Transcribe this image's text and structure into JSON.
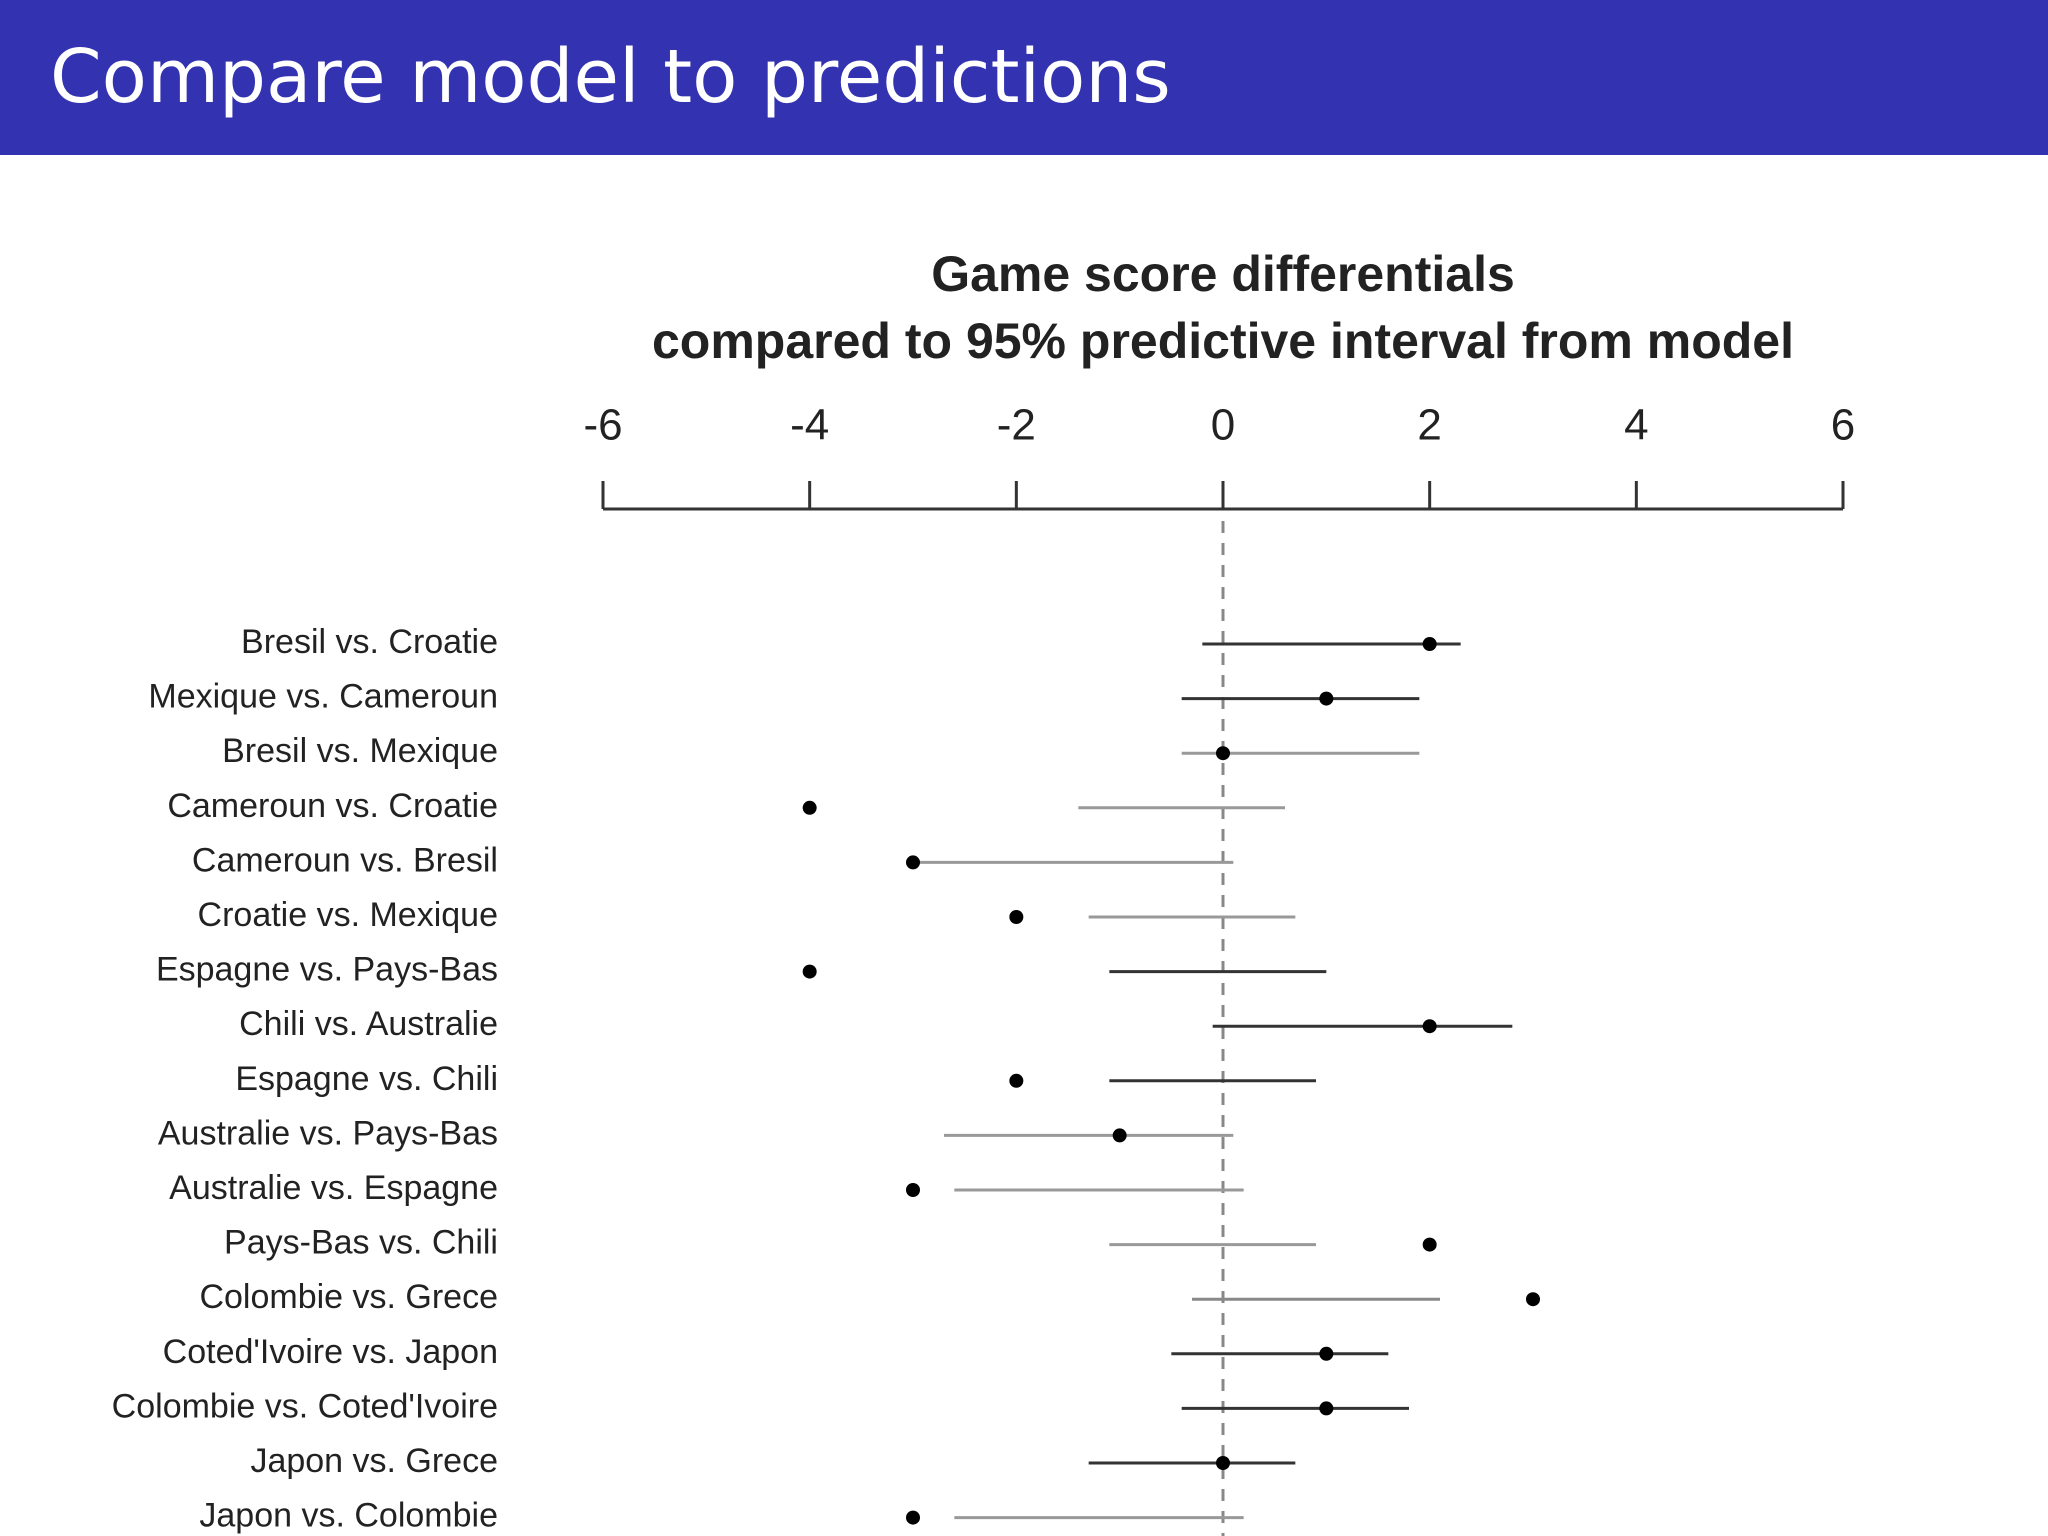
{
  "header": {
    "title": "Compare model to predictions"
  },
  "chart_data": {
    "type": "dot-interval",
    "title": "Game score differentials",
    "subtitle": "compared to 95% predictive interval from model",
    "categories": [
      "Bresil vs. Croatie",
      "Mexique vs. Cameroun",
      "Bresil vs. Mexique",
      "Cameroun vs. Croatie",
      "Cameroun vs. Bresil",
      "Croatie vs. Mexique",
      "Espagne vs. Pays-Bas",
      "Chili vs. Australie",
      "Espagne vs. Chili",
      "Australie vs. Pays-Bas",
      "Australie vs. Espagne",
      "Pays-Bas vs. Chili",
      "Colombie vs. Grece",
      "Coted'Ivoire vs. Japon",
      "Colombie vs. Coted'Ivoire",
      "Japon vs. Grece",
      "Japon vs. Colombie"
    ],
    "values": [
      2,
      1,
      0,
      -4,
      -3,
      -2,
      -4,
      2,
      -2,
      -1,
      -3,
      2,
      3,
      1,
      1,
      0,
      -3
    ],
    "lower": [
      -0.2,
      -0.4,
      -0.4,
      -1.4,
      -3.0,
      -1.3,
      -1.1,
      -0.1,
      -1.1,
      -2.7,
      -2.6,
      -1.1,
      -0.3,
      -0.5,
      -0.4,
      -1.3,
      -2.6
    ],
    "upper": [
      2.3,
      1.9,
      1.9,
      0.6,
      0.1,
      0.7,
      1.0,
      2.8,
      0.9,
      0.1,
      0.2,
      0.9,
      2.1,
      1.6,
      1.8,
      0.7,
      0.2
    ],
    "interval_colors": [
      "#333333",
      "#333333",
      "#999999",
      "#999999",
      "#999999",
      "#999999",
      "#333333",
      "#333333",
      "#333333",
      "#999999",
      "#999999",
      "#999999",
      "#888888",
      "#333333",
      "#333333",
      "#333333",
      "#999999"
    ],
    "point_color": "#000000",
    "reference_line": 0,
    "xlim": [
      -6,
      6
    ],
    "xticks": [
      -6,
      -4,
      -2,
      0,
      2,
      4,
      6
    ]
  }
}
